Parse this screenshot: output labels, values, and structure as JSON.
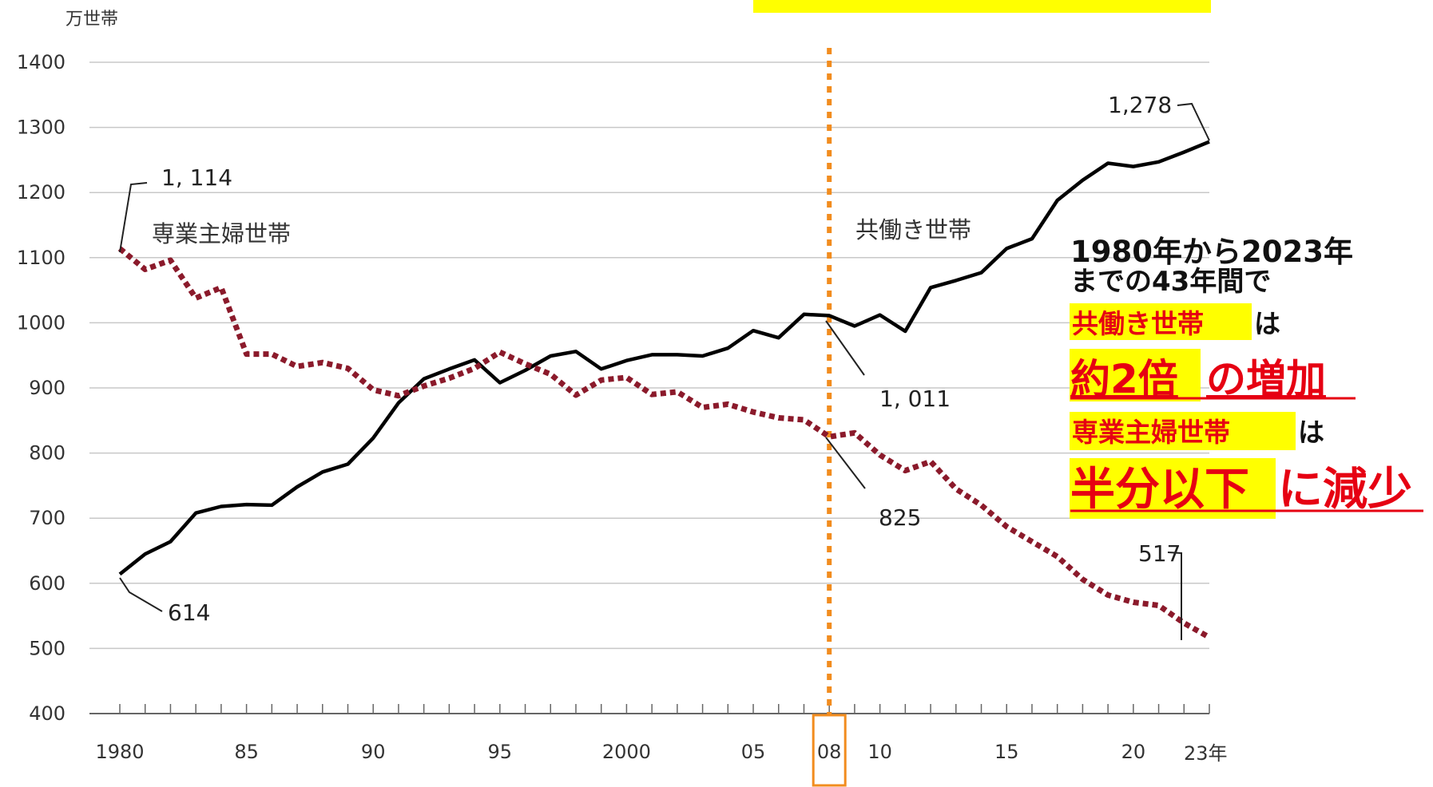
{
  "chart_data": {
    "type": "line",
    "ylabel": "万世帯",
    "x_end_label": "23年",
    "ylim": [
      400,
      1400
    ],
    "yticks": [
      400,
      500,
      600,
      700,
      800,
      900,
      1000,
      1100,
      1200,
      1300,
      1400
    ],
    "xlim": [
      1980,
      2023
    ],
    "xtick_labels": [
      {
        "year": 1980,
        "label": "1980"
      },
      {
        "year": 1985,
        "label": "85"
      },
      {
        "year": 1990,
        "label": "90"
      },
      {
        "year": 1995,
        "label": "95"
      },
      {
        "year": 2000,
        "label": "2000"
      },
      {
        "year": 2005,
        "label": "05"
      },
      {
        "year": 2008,
        "label": "08",
        "highlight": true
      },
      {
        "year": 2010,
        "label": "10"
      },
      {
        "year": 2015,
        "label": "15"
      },
      {
        "year": 2020,
        "label": "20"
      }
    ],
    "x": [
      1980,
      1981,
      1982,
      1983,
      1984,
      1985,
      1986,
      1987,
      1988,
      1989,
      1990,
      1991,
      1992,
      1993,
      1994,
      1995,
      1996,
      1997,
      1998,
      1999,
      2000,
      2001,
      2002,
      2003,
      2004,
      2005,
      2006,
      2007,
      2008,
      2009,
      2010,
      2011,
      2012,
      2013,
      2014,
      2015,
      2016,
      2017,
      2018,
      2019,
      2020,
      2021,
      2022,
      2023
    ],
    "series": [
      {
        "name": "共働き世帯",
        "color": "#000000",
        "style": "solid",
        "values": [
          614,
          645,
          664,
          708,
          718,
          721,
          720,
          748,
          771,
          783,
          823,
          877,
          914,
          929,
          943,
          908,
          927,
          949,
          956,
          929,
          942,
          951,
          951,
          949,
          961,
          988,
          977,
          1013,
          1011,
          995,
          1012,
          987,
          1054,
          1065,
          1077,
          1114,
          1129,
          1188,
          1219,
          1245,
          1240,
          1247,
          1262,
          1278
        ]
      },
      {
        "name": "専業主婦世帯",
        "color": "#8b1a2b",
        "style": "dotted",
        "values": [
          1114,
          1082,
          1096,
          1038,
          1054,
          952,
          952,
          933,
          939,
          930,
          897,
          888,
          903,
          915,
          930,
          955,
          937,
          921,
          889,
          912,
          916,
          890,
          894,
          870,
          875,
          863,
          854,
          851,
          825,
          831,
          797,
          773,
          787,
          745,
          720,
          687,
          664,
          641,
          606,
          582,
          571,
          566,
          539,
          517
        ]
      }
    ],
    "callouts": {
      "dual_1980": "614",
      "housewife_1980": "1, 114",
      "dual_2008": "1, 011",
      "housewife_2008": "825",
      "dual_2023": "1,278",
      "housewife_2023": "517"
    },
    "highlight_year": 2008,
    "marker_color": "#f28c1e",
    "annotation": {
      "line1": "1980年から2023年",
      "line2": "までの43年間で",
      "line3_a": "共働き世帯",
      "line3_b": "は",
      "line4_a": "約2倍",
      "line4_b": "の増加",
      "line5_a": "専業主婦世帯",
      "line5_b": "は",
      "line6_a": "半分以下",
      "line6_b": "に減少",
      "highlight_color": "#ffff00",
      "emphasis_color": "#e60012"
    }
  }
}
